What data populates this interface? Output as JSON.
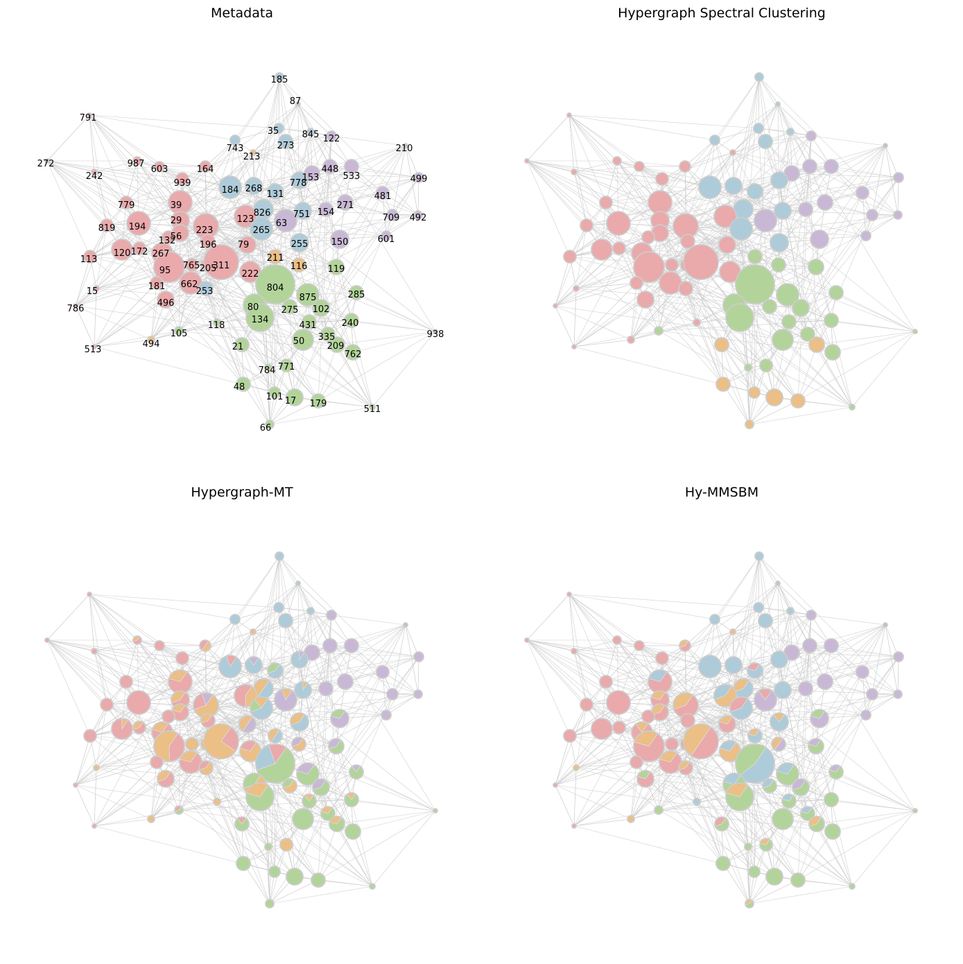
{
  "figure": {
    "panels": [
      {
        "title": "Metadata",
        "labels": true,
        "mode": "meta"
      },
      {
        "title": "Hypergraph Spectral Clustering",
        "labels": false,
        "mode": "hsc"
      },
      {
        "title": "Hypergraph-MT",
        "labels": false,
        "mode": "mt"
      },
      {
        "title": "Hy-MMSBM",
        "labels": false,
        "mode": "mm"
      }
    ],
    "colors": {
      "red": "#eaa9ab",
      "blue": "#aecbd9",
      "purple": "#c8b8d5",
      "green": "#b2d49a",
      "orange": "#ebbf86",
      "edge": "#cfcfcf",
      "ring": "#cccccc"
    },
    "nodes": [
      {
        "id": "185",
        "c": "blue",
        "r": 6
      },
      {
        "id": "87",
        "c": "blue",
        "r": 3
      },
      {
        "id": "791",
        "c": "red",
        "r": 3
      },
      {
        "id": "35",
        "c": "blue",
        "r": 7
      },
      {
        "id": "845",
        "c": "blue",
        "r": 5
      },
      {
        "id": "122",
        "c": "purple",
        "r": 7
      },
      {
        "id": "743",
        "c": "blue",
        "r": 7
      },
      {
        "id": "273",
        "c": "blue",
        "r": 10
      },
      {
        "id": "213",
        "c": "orange",
        "r": 4
      },
      {
        "id": "210",
        "c": "purple",
        "r": 3
      },
      {
        "id": "272",
        "c": "red",
        "r": 3
      },
      {
        "id": "987",
        "c": "red",
        "r": 6
      },
      {
        "id": "603",
        "c": "red",
        "r": 7
      },
      {
        "id": "164",
        "c": "red",
        "r": 8
      },
      {
        "id": "448",
        "c": "purple",
        "r": 10
      },
      {
        "id": "533",
        "c": "purple",
        "r": 10
      },
      {
        "id": "499",
        "c": "purple",
        "r": 7
      },
      {
        "id": "242",
        "c": "red",
        "r": 4
      },
      {
        "id": "939",
        "c": "red",
        "r": 9
      },
      {
        "id": "153",
        "c": "purple",
        "r": 11
      },
      {
        "id": "778",
        "c": "blue",
        "r": 12
      },
      {
        "id": "184",
        "c": "blue",
        "r": 16
      },
      {
        "id": "268",
        "c": "blue",
        "r": 12
      },
      {
        "id": "131",
        "c": "blue",
        "r": 11
      },
      {
        "id": "481",
        "c": "purple",
        "r": 9
      },
      {
        "id": "779",
        "c": "red",
        "r": 9
      },
      {
        "id": "39",
        "c": "red",
        "r": 17
      },
      {
        "id": "271",
        "c": "purple",
        "r": 11
      },
      {
        "id": "154",
        "c": "purple",
        "r": 10
      },
      {
        "id": "751",
        "c": "blue",
        "r": 12
      },
      {
        "id": "826",
        "c": "blue",
        "r": 14
      },
      {
        "id": "123",
        "c": "red",
        "r": 16
      },
      {
        "id": "709",
        "c": "purple",
        "r": 8
      },
      {
        "id": "492",
        "c": "purple",
        "r": 6
      },
      {
        "id": "819",
        "c": "red",
        "r": 9
      },
      {
        "id": "194",
        "c": "red",
        "r": 17
      },
      {
        "id": "29",
        "c": "red",
        "r": 13
      },
      {
        "id": "223",
        "c": "red",
        "r": 18
      },
      {
        "id": "63",
        "c": "purple",
        "r": 16
      },
      {
        "id": "265",
        "c": "blue",
        "r": 16
      },
      {
        "id": "601",
        "c": "purple",
        "r": 7
      },
      {
        "id": "56",
        "c": "red",
        "r": 12
      },
      {
        "id": "132",
        "c": "red",
        "r": 9
      },
      {
        "id": "196",
        "c": "red",
        "r": 10
      },
      {
        "id": "150",
        "c": "purple",
        "r": 13
      },
      {
        "id": "255",
        "c": "blue",
        "r": 13
      },
      {
        "id": "79",
        "c": "red",
        "r": 12
      },
      {
        "id": "172",
        "c": "red",
        "r": 9
      },
      {
        "id": "120",
        "c": "red",
        "r": 15
      },
      {
        "id": "267",
        "c": "red",
        "r": 15
      },
      {
        "id": "113",
        "c": "red",
        "r": 9
      },
      {
        "id": "211",
        "c": "orange",
        "r": 10
      },
      {
        "id": "765",
        "c": "red",
        "r": 9
      },
      {
        "id": "205",
        "c": "red",
        "r": 9
      },
      {
        "id": "311",
        "c": "red",
        "r": 25
      },
      {
        "id": "116",
        "c": "orange",
        "r": 10
      },
      {
        "id": "119",
        "c": "green",
        "r": 11
      },
      {
        "id": "95",
        "c": "red",
        "r": 22
      },
      {
        "id": "222",
        "c": "red",
        "r": 15
      },
      {
        "id": "804",
        "c": "green",
        "r": 28
      },
      {
        "id": "181",
        "c": "red",
        "r": 9
      },
      {
        "id": "662",
        "c": "red",
        "r": 16
      },
      {
        "id": "15",
        "c": "red",
        "r": 4
      },
      {
        "id": "253",
        "c": "blue",
        "r": 10
      },
      {
        "id": "285",
        "c": "green",
        "r": 10
      },
      {
        "id": "875",
        "c": "green",
        "r": 16
      },
      {
        "id": "496",
        "c": "red",
        "r": 12
      },
      {
        "id": "786",
        "c": "red",
        "r": 3
      },
      {
        "id": "80",
        "c": "green",
        "r": 16
      },
      {
        "id": "275",
        "c": "green",
        "r": 10
      },
      {
        "id": "102",
        "c": "green",
        "r": 12
      },
      {
        "id": "134",
        "c": "green",
        "r": 20
      },
      {
        "id": "431",
        "c": "green",
        "r": 10
      },
      {
        "id": "240",
        "c": "green",
        "r": 10
      },
      {
        "id": "118",
        "c": "green",
        "r": 5
      },
      {
        "id": "938",
        "c": "green",
        "r": 3
      },
      {
        "id": "105",
        "c": "green",
        "r": 6
      },
      {
        "id": "335",
        "c": "green",
        "r": 10
      },
      {
        "id": "494",
        "c": "orange",
        "r": 5
      },
      {
        "id": "50",
        "c": "green",
        "r": 15
      },
      {
        "id": "209",
        "c": "green",
        "r": 11
      },
      {
        "id": "513",
        "c": "red",
        "r": 3
      },
      {
        "id": "21",
        "c": "green",
        "r": 10
      },
      {
        "id": "762",
        "c": "green",
        "r": 11
      },
      {
        "id": "771",
        "c": "green",
        "r": 9
      },
      {
        "id": "784",
        "c": "green",
        "r": 5
      },
      {
        "id": "48",
        "c": "green",
        "r": 10
      },
      {
        "id": "101",
        "c": "green",
        "r": 8
      },
      {
        "id": "17",
        "c": "green",
        "r": 12
      },
      {
        "id": "179",
        "c": "green",
        "r": 10
      },
      {
        "id": "511",
        "c": "green",
        "r": 4
      },
      {
        "id": "66",
        "c": "green",
        "r": 6
      }
    ]
  }
}
